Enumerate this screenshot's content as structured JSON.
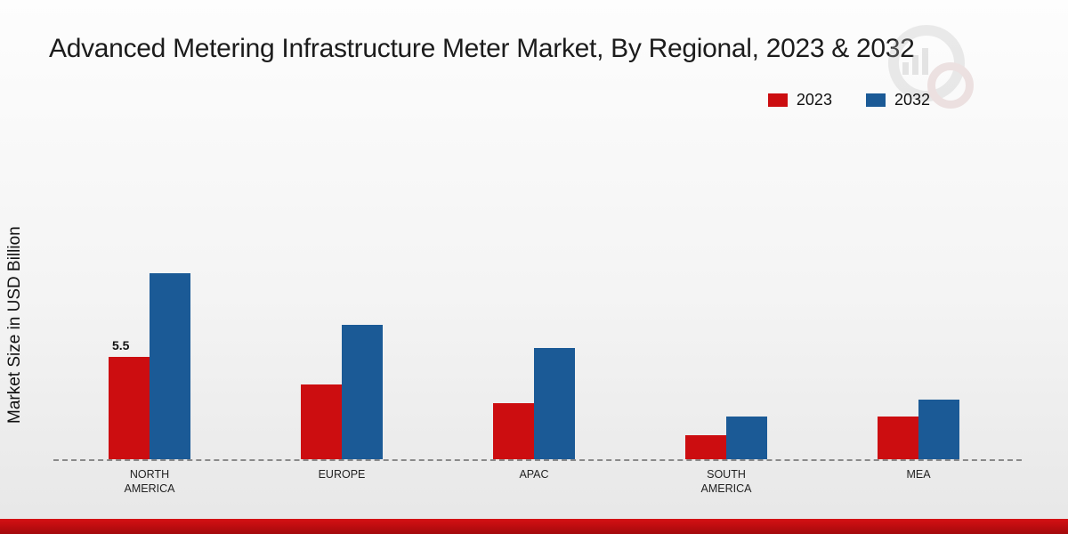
{
  "title": "Advanced Metering Infrastructure Meter Market, By Regional, 2023 & 2032",
  "y_axis_label": "Market Size in USD Billion",
  "legend": {
    "items": [
      {
        "label": "2023",
        "color": "#cc0d10"
      },
      {
        "label": "2032",
        "color": "#1b5a96"
      }
    ]
  },
  "colors": {
    "series_2023": "#cc0d10",
    "series_2032": "#1b5a96",
    "footer_band": "#c00d10",
    "axis_dash": "#8a8a8a"
  },
  "chart_data": {
    "type": "bar",
    "title": "Advanced Metering Infrastructure Meter Market, By Regional, 2023 & 2032",
    "categories": [
      "NORTH AMERICA",
      "EUROPE",
      "APAC",
      "SOUTH AMERICA",
      "MEA"
    ],
    "series": [
      {
        "name": "2023",
        "color": "#cc0d10",
        "values": [
          5.5,
          4.0,
          3.0,
          1.3,
          2.3
        ]
      },
      {
        "name": "2032",
        "color": "#1b5a96",
        "values": [
          10.0,
          7.2,
          6.0,
          2.3,
          3.2
        ]
      }
    ],
    "xlabel": "",
    "ylabel": "Market Size in USD Billion",
    "ylim": [
      0,
      11
    ],
    "grid": false,
    "legend_position": "top-right",
    "annotations": [
      {
        "series": "2023",
        "category": "NORTH AMERICA",
        "text": "5.5"
      }
    ]
  }
}
